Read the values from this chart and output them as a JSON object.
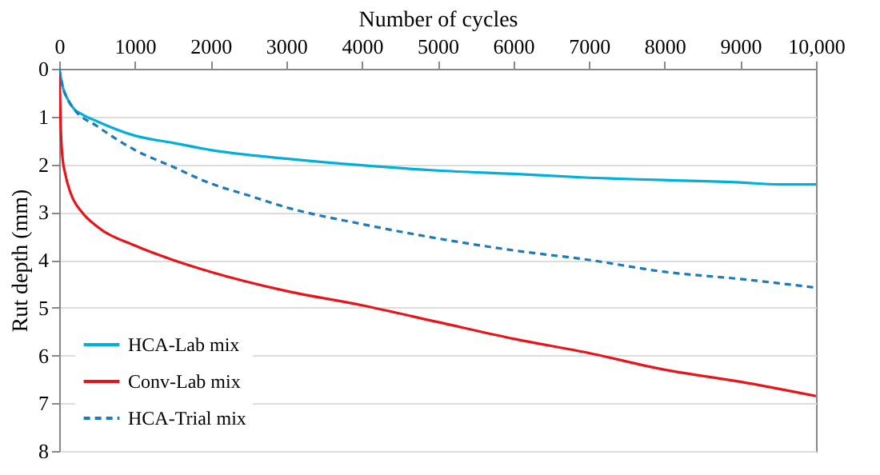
{
  "chart_data": {
    "type": "line",
    "xlabel": "Number of cycles",
    "ylabel": "Rut depth (mm)",
    "xlim": [
      0,
      10000
    ],
    "xticks": [
      0,
      1000,
      2000,
      3000,
      4000,
      5000,
      6000,
      7000,
      8000,
      9000,
      {
        "value": 10000,
        "label": "10,000"
      }
    ],
    "ylim": [
      8,
      0
    ],
    "yticks": [
      0,
      1,
      2,
      3,
      4,
      5,
      6,
      7,
      8
    ],
    "grid": "y",
    "legend": "bottom left",
    "series": [
      {
        "name": "HCA-Lab mix",
        "color": "#00b0d8",
        "line_style": "solid",
        "x": [
          0,
          50,
          100,
          200,
          300,
          500,
          1000,
          1500,
          2000,
          3000,
          4000,
          5000,
          6000,
          7000,
          8000,
          9000,
          9500,
          10000
        ],
        "values": [
          0,
          0.4,
          0.6,
          0.85,
          0.95,
          1.1,
          1.4,
          1.55,
          1.7,
          1.88,
          2.02,
          2.13,
          2.2,
          2.28,
          2.33,
          2.38,
          2.42,
          2.42
        ]
      },
      {
        "name": "Conv-Lab mix",
        "color": "#e8141c",
        "line_style": "solid",
        "x": [
          0,
          10,
          20,
          40,
          80,
          150,
          300,
          500,
          1000,
          1500,
          2000,
          3000,
          4000,
          5000,
          6000,
          7000,
          8000,
          9000,
          10000
        ],
        "values": [
          0,
          0.5,
          1.2,
          1.8,
          2.2,
          2.6,
          3.0,
          3.3,
          3.7,
          4.0,
          4.25,
          4.65,
          4.95,
          5.3,
          5.65,
          5.95,
          6.3,
          6.55,
          6.85
        ]
      },
      {
        "name": "HCA-Trial mix",
        "color": "#1e7bb8",
        "line_style": "dashed",
        "x": [
          0,
          50,
          100,
          200,
          500,
          1000,
          1500,
          2000,
          2500,
          3000,
          4000,
          5000,
          6000,
          7000,
          8000,
          9000,
          10000
        ],
        "values": [
          0,
          0.4,
          0.6,
          0.85,
          1.2,
          1.7,
          2.05,
          2.4,
          2.65,
          2.9,
          3.25,
          3.55,
          3.8,
          4.0,
          4.25,
          4.4,
          4.58
        ]
      }
    ]
  }
}
